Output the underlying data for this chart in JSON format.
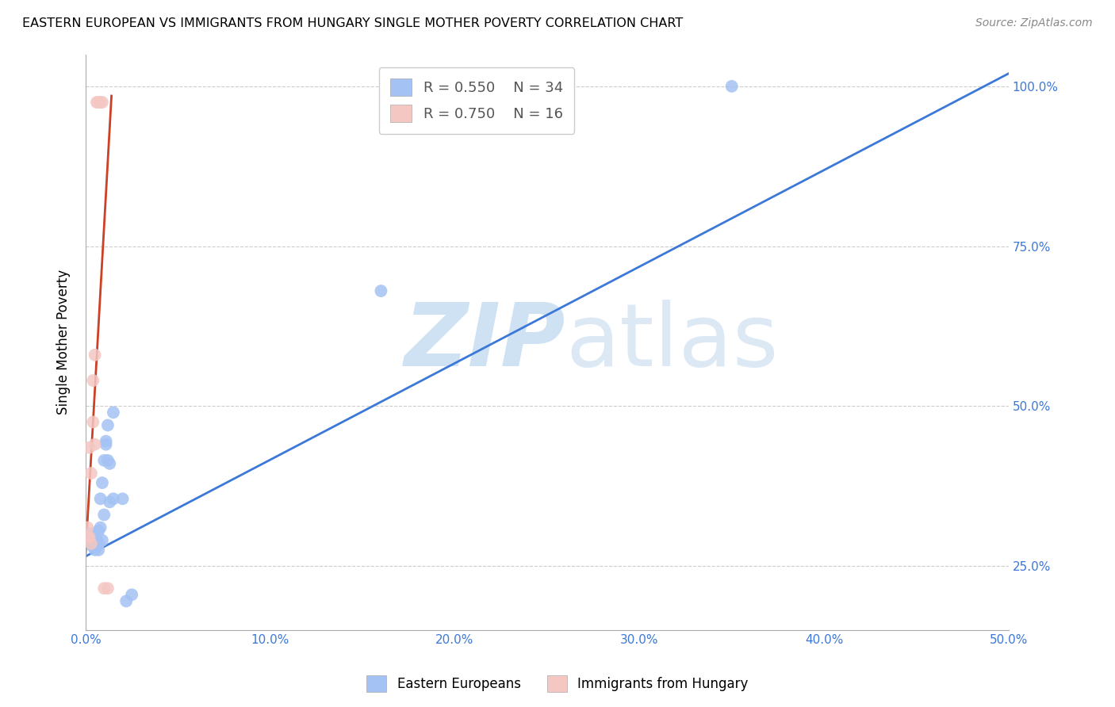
{
  "title": "EASTERN EUROPEAN VS IMMIGRANTS FROM HUNGARY SINGLE MOTHER POVERTY CORRELATION CHART",
  "source": "Source: ZipAtlas.com",
  "ylabel": "Single Mother Poverty",
  "xlim": [
    0.0,
    0.5
  ],
  "ylim": [
    0.15,
    1.05
  ],
  "xtick_values": [
    0.0,
    0.1,
    0.2,
    0.3,
    0.4,
    0.5
  ],
  "xtick_labels": [
    "0.0%",
    "10.0%",
    "20.0%",
    "30.0%",
    "40.0%",
    "50.0%"
  ],
  "ytick_values": [
    0.25,
    0.5,
    0.75,
    1.0
  ],
  "ytick_labels": [
    "25.0%",
    "50.0%",
    "75.0%",
    "100.0%"
  ],
  "blue_color": "#a4c2f4",
  "pink_color": "#f4c7c3",
  "blue_line_color": "#3c78d8",
  "pink_line_color": "#cc4125",
  "legend_blue_r": "R = 0.550",
  "legend_blue_n": "N = 34",
  "legend_pink_r": "R = 0.750",
  "legend_pink_n": "N = 16",
  "watermark_zip": "ZIP",
  "watermark_atlas": "atlas",
  "watermark_color": "#cfe2f3",
  "axis_label_color": "#3c78d8",
  "background_color": "#ffffff",
  "grid_color": "#cccccc",
  "blue_scatter_x": [
    0.002,
    0.002,
    0.003,
    0.003,
    0.003,
    0.004,
    0.004,
    0.004,
    0.005,
    0.005,
    0.006,
    0.006,
    0.007,
    0.007,
    0.007,
    0.008,
    0.008,
    0.009,
    0.009,
    0.01,
    0.01,
    0.011,
    0.011,
    0.012,
    0.012,
    0.013,
    0.013,
    0.015,
    0.015,
    0.02,
    0.022,
    0.025,
    0.16,
    0.35
  ],
  "blue_scatter_y": [
    0.295,
    0.3,
    0.285,
    0.295,
    0.3,
    0.28,
    0.285,
    0.29,
    0.275,
    0.295,
    0.28,
    0.29,
    0.275,
    0.285,
    0.305,
    0.31,
    0.355,
    0.29,
    0.38,
    0.33,
    0.415,
    0.44,
    0.445,
    0.415,
    0.47,
    0.35,
    0.41,
    0.355,
    0.49,
    0.355,
    0.195,
    0.205,
    0.68,
    1.0
  ],
  "pink_scatter_x": [
    0.001,
    0.001,
    0.002,
    0.002,
    0.003,
    0.003,
    0.004,
    0.004,
    0.005,
    0.005,
    0.006,
    0.007,
    0.008,
    0.009,
    0.01,
    0.012
  ],
  "pink_scatter_y": [
    0.295,
    0.31,
    0.295,
    0.435,
    0.285,
    0.395,
    0.475,
    0.54,
    0.44,
    0.58,
    0.975,
    0.975,
    0.975,
    0.975,
    0.215,
    0.215
  ],
  "blue_trendline_x": [
    0.0,
    0.5
  ],
  "blue_trendline_y": [
    0.265,
    1.02
  ],
  "pink_trendline_x": [
    0.0,
    0.014
  ],
  "pink_trendline_y": [
    0.27,
    0.985
  ]
}
